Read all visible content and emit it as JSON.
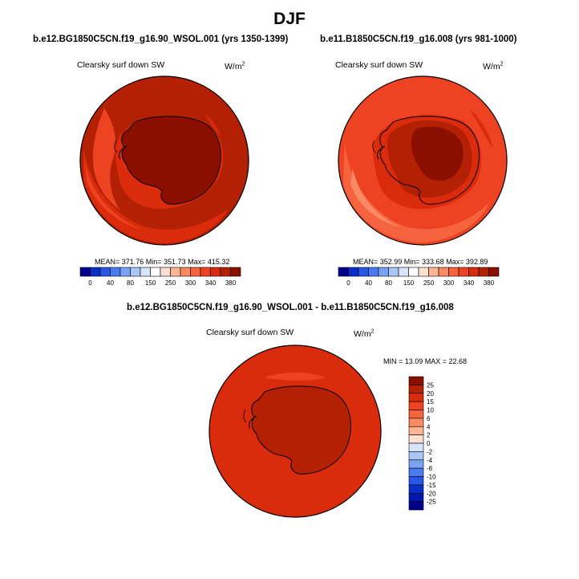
{
  "figure": {
    "title": "DJF",
    "panels": [
      {
        "id": "left",
        "case": "b.e12.BG1850C5CN.f19_g16.90_WSOL.001 (yrs 1350-1399)",
        "variable": "Clearsky surf down SW",
        "units_base": "W/m",
        "units_exp": "2",
        "stats": "MEAN= 371.76  Min= 351.73  Max= 415.32",
        "colorbar": {
          "colors": [
            "#00008b",
            "#0a2fc8",
            "#2a56e6",
            "#4a7bf0",
            "#7aa2f4",
            "#a9c6f7",
            "#d6e5fb",
            "#ffffff",
            "#fde0d2",
            "#fbb595",
            "#f98a62",
            "#f6633f",
            "#ee4322",
            "#da2c0c",
            "#b42004",
            "#8a0f00"
          ],
          "labels": [
            "0",
            "40",
            "80",
            "150",
            "250",
            "300",
            "340",
            "380"
          ]
        }
      },
      {
        "id": "right",
        "case": "b.e11.B1850C5CN.f19_g16.008 (yrs 981-1000)",
        "variable": "Clearsky surf down SW",
        "units_base": "W/m",
        "units_exp": "2",
        "stats": "MEAN= 352.99  Min= 333.68  Max= 392.89",
        "colorbar": {
          "colors": [
            "#00008b",
            "#0a2fc8",
            "#2a56e6",
            "#4a7bf0",
            "#7aa2f4",
            "#a9c6f7",
            "#d6e5fb",
            "#ffffff",
            "#fde0d2",
            "#fbb595",
            "#f98a62",
            "#f6633f",
            "#ee4322",
            "#da2c0c",
            "#b42004",
            "#8a0f00"
          ],
          "labels": [
            "0",
            "40",
            "80",
            "150",
            "250",
            "300",
            "340",
            "380"
          ]
        }
      },
      {
        "id": "diff",
        "case": "b.e12.BG1850C5CN.f19_g16.90_WSOL.001 - b.e11.B1850C5CN.f19_g16.008",
        "variable": "Clearsky surf down SW",
        "units_base": "W/m",
        "units_exp": "2",
        "stats": "MIN = 13.09 MAX = 22.68",
        "colorbar": {
          "colors": [
            "#8a0f00",
            "#b42004",
            "#da2c0c",
            "#ee4322",
            "#f6633f",
            "#f98a62",
            "#fbb595",
            "#fde0d2",
            "#d6e5fb",
            "#a9c6f7",
            "#7aa2f4",
            "#4a7bf0",
            "#2a56e6",
            "#0a2fc8",
            "#0018aa",
            "#00008b"
          ],
          "labels": [
            "25",
            "20",
            "15",
            "10",
            "6",
            "4",
            "2",
            "0",
            "-2",
            "-4",
            "-6",
            "-10",
            "-15",
            "-20",
            "-25"
          ]
        }
      }
    ]
  }
}
